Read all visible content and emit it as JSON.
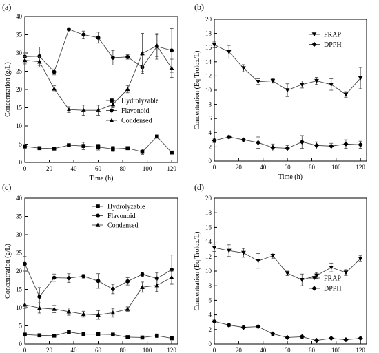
{
  "chart_data": [
    {
      "type": "line",
      "panel_label": "(a)",
      "xlabel": "Time (h)",
      "ylabel": "Concentration (g/L)",
      "xlim": [
        0,
        125
      ],
      "ylim": [
        0,
        40
      ],
      "xticks": [
        0,
        20,
        40,
        60,
        80,
        100,
        120
      ],
      "yticks": [
        0,
        5,
        10,
        15,
        20,
        25,
        30,
        35,
        40
      ],
      "grid": false,
      "legend_position": "lower-right",
      "series": [
        {
          "name": "Hydrolyzable",
          "marker": "square",
          "x": [
            0,
            12,
            24,
            36,
            48,
            60,
            72,
            84,
            96,
            108,
            120
          ],
          "y": [
            4.4,
            3.9,
            3.8,
            4.7,
            4.5,
            4.2,
            3.7,
            3.9,
            2.9,
            7.1,
            2.7
          ],
          "err": [
            0.5,
            0.3,
            0.3,
            0.4,
            1.0,
            0.8,
            0.7,
            0.4,
            0.7,
            0.4,
            0.4
          ]
        },
        {
          "name": "Flavonoid",
          "marker": "circle",
          "x": [
            0,
            12,
            24,
            36,
            48,
            60,
            72,
            84,
            96,
            108,
            120
          ],
          "y": [
            29.0,
            29.1,
            24.8,
            36.5,
            35.0,
            34.2,
            28.7,
            28.9,
            26.1,
            31.8,
            30.7
          ],
          "err": [
            1.0,
            2.5,
            0.8,
            0.4,
            1.0,
            1.5,
            2.0,
            0.6,
            1.2,
            3.5,
            6.0
          ]
        },
        {
          "name": "Condensed",
          "marker": "triangle-up",
          "x": [
            0,
            12,
            24,
            36,
            48,
            60,
            72,
            84,
            96,
            108,
            120
          ],
          "y": [
            28.0,
            27.6,
            20.2,
            14.5,
            14.3,
            14.3,
            15.9,
            20.1,
            29.9,
            32.0,
            25.8
          ],
          "err": [
            1.0,
            1.5,
            0.8,
            0.8,
            1.4,
            1.4,
            0.9,
            1.0,
            5.5,
            3.0,
            2.5
          ]
        }
      ]
    },
    {
      "type": "line",
      "panel_label": "(b)",
      "xlabel": "Time (h)",
      "ylabel": "Concentration (Eq Trolox/L)",
      "xlim": [
        0,
        125
      ],
      "ylim": [
        0,
        20
      ],
      "xticks": [
        0,
        20,
        40,
        60,
        80,
        100,
        120
      ],
      "yticks": [
        0,
        2,
        4,
        6,
        8,
        10,
        12,
        14,
        16,
        18,
        20
      ],
      "grid": false,
      "legend_position": "top-right",
      "series": [
        {
          "name": "FRAP",
          "marker": "triangle-down",
          "x": [
            0,
            12,
            24,
            36,
            48,
            60,
            72,
            84,
            96,
            108,
            120
          ],
          "y": [
            16.4,
            15.4,
            13.1,
            11.2,
            11.3,
            10.0,
            10.8,
            11.3,
            10.8,
            9.4,
            11.7
          ],
          "err": [
            0.4,
            0.9,
            0.5,
            0.4,
            0.3,
            0.9,
            0.5,
            0.5,
            0.8,
            0.4,
            1.5
          ]
        },
        {
          "name": "DPPH",
          "marker": "diamond",
          "x": [
            0,
            12,
            24,
            36,
            48,
            60,
            72,
            84,
            96,
            108,
            120
          ],
          "y": [
            2.9,
            3.4,
            3.0,
            2.6,
            1.9,
            1.8,
            2.7,
            2.2,
            2.1,
            2.4,
            2.3
          ],
          "err": [
            0.3,
            0.2,
            0.2,
            0.8,
            0.5,
            0.4,
            0.9,
            0.5,
            0.4,
            0.6,
            0.5
          ]
        }
      ]
    },
    {
      "type": "line",
      "panel_label": "(c)",
      "xlabel": "Time (h)",
      "ylabel": "Concentration (g/L)",
      "xlim": [
        0,
        125
      ],
      "ylim": [
        0,
        40
      ],
      "xticks": [
        0,
        20,
        40,
        60,
        80,
        100,
        120
      ],
      "yticks": [
        0,
        5,
        10,
        15,
        20,
        25,
        30,
        35,
        40
      ],
      "grid": false,
      "legend_position": "top-center",
      "series": [
        {
          "name": "Hydrolyzable",
          "marker": "square",
          "x": [
            0,
            12,
            24,
            36,
            48,
            60,
            72,
            84,
            96,
            108,
            120
          ],
          "y": [
            2.6,
            2.4,
            2.3,
            3.3,
            2.7,
            2.7,
            2.6,
            1.9,
            1.8,
            2.3,
            1.6
          ],
          "err": [
            0.3,
            0.3,
            0.3,
            0.5,
            0.3,
            0.4,
            0.3,
            0.3,
            0.2,
            0.5,
            0.3
          ]
        },
        {
          "name": "Flavonoid",
          "marker": "circle",
          "x": [
            0,
            12,
            24,
            36,
            48,
            60,
            72,
            84,
            96,
            108,
            120
          ],
          "y": [
            22.0,
            13.0,
            18.2,
            18.1,
            18.6,
            17.3,
            15.1,
            17.2,
            19.1,
            18.0,
            20.4
          ],
          "err": [
            2.0,
            2.5,
            1.0,
            1.2,
            0.5,
            2.0,
            1.3,
            1.0,
            0.5,
            1.5,
            4.0
          ]
        },
        {
          "name": "Condensed",
          "marker": "triangle-up",
          "x": [
            0,
            12,
            24,
            36,
            48,
            60,
            72,
            84,
            96,
            108,
            120
          ],
          "y": [
            10.8,
            9.9,
            9.6,
            8.9,
            8.2,
            8.0,
            8.6,
            9.6,
            15.6,
            16.1,
            18.3
          ],
          "err": [
            1.0,
            1.4,
            1.0,
            1.0,
            0.8,
            1.2,
            1.2,
            0.6,
            1.4,
            1.7,
            1.7
          ]
        }
      ]
    },
    {
      "type": "line",
      "panel_label": "(d)",
      "xlabel": "Time (h)",
      "ylabel": "Concentration (Eq Trolox/L)",
      "xlim": [
        0,
        125
      ],
      "ylim": [
        0,
        20
      ],
      "xticks": [
        0,
        20,
        40,
        60,
        80,
        100,
        120
      ],
      "yticks": [
        0,
        2,
        4,
        6,
        8,
        10,
        12,
        14,
        16,
        18,
        20
      ],
      "grid": false,
      "legend_position": "center-right",
      "series": [
        {
          "name": "FRAP",
          "marker": "triangle-down",
          "x": [
            0,
            12,
            24,
            36,
            48,
            60,
            72,
            84,
            96,
            108,
            120
          ],
          "y": [
            13.2,
            12.8,
            12.5,
            11.4,
            12.1,
            9.7,
            8.8,
            9.4,
            10.5,
            9.8,
            11.7
          ],
          "err": [
            0.5,
            0.8,
            0.6,
            1.0,
            0.4,
            0.3,
            0.8,
            0.4,
            0.6,
            0.4,
            0.4
          ]
        },
        {
          "name": "DPPH",
          "marker": "diamond",
          "x": [
            0,
            12,
            24,
            36,
            48,
            60,
            72,
            84,
            96,
            108,
            120
          ],
          "y": [
            3.1,
            2.6,
            2.3,
            2.4,
            1.4,
            0.9,
            1.0,
            0.5,
            0.8,
            0.6,
            0.8
          ],
          "err": [
            0.2,
            0.2,
            0.2,
            0.2,
            0.2,
            0.1,
            0.2,
            0.1,
            0.1,
            0.1,
            0.1
          ]
        }
      ]
    }
  ]
}
